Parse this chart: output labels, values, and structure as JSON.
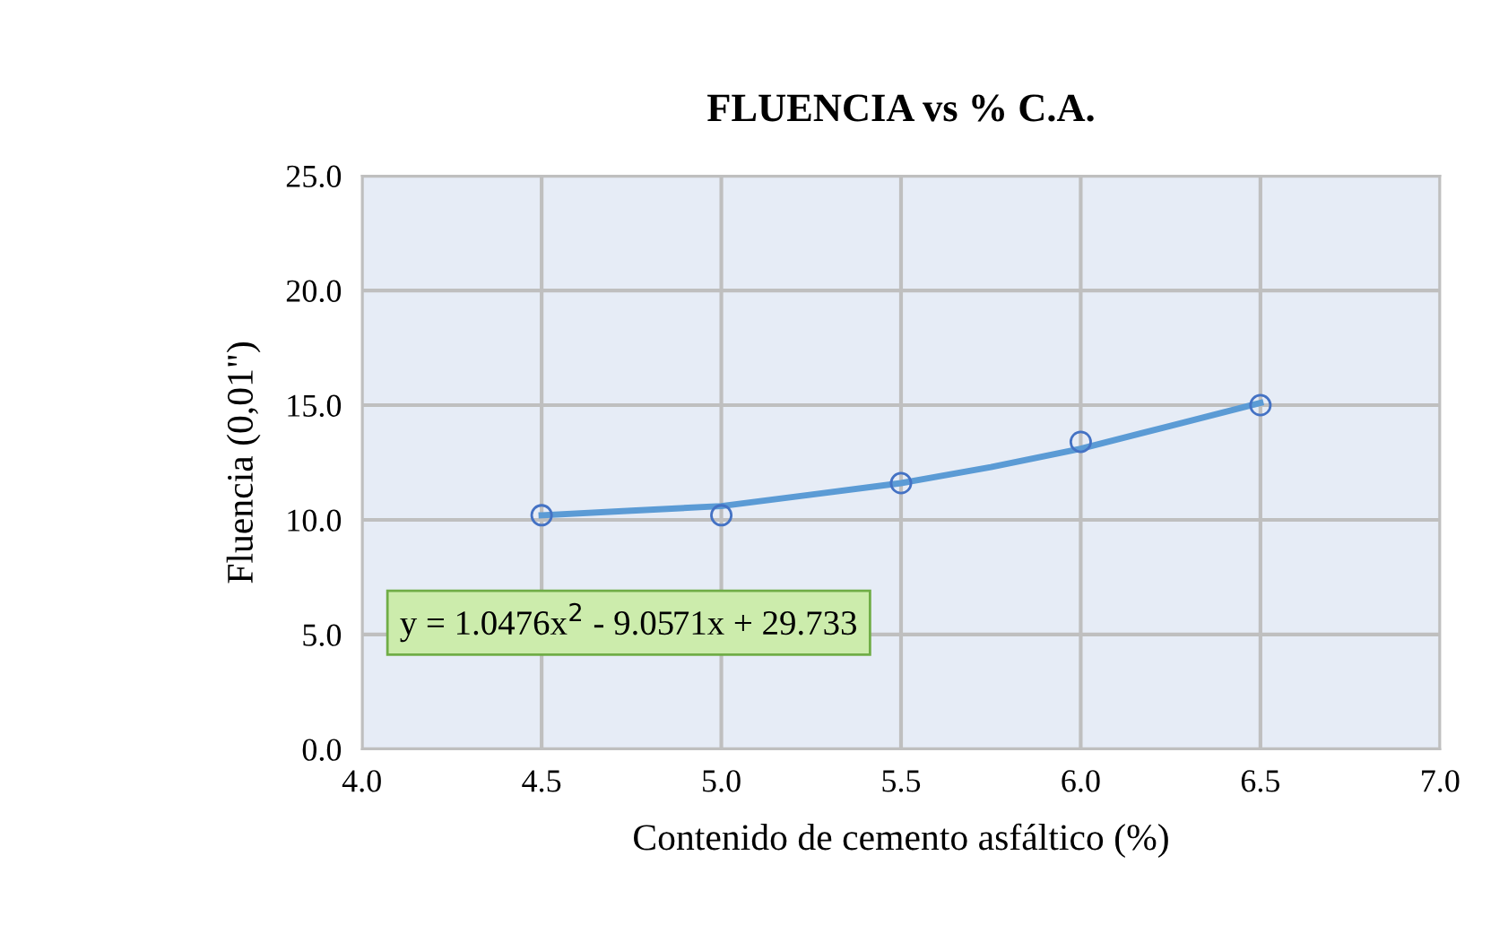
{
  "chart_data": {
    "type": "scatter",
    "title": "FLUENCIA vs % C.A.",
    "xlabel": "Contenido de cemento asfáltico (%)",
    "ylabel": "Fluencia (0,01\")",
    "xlim": [
      4.0,
      7.0
    ],
    "xticks": [
      {
        "value": 4.0,
        "label": "4.0"
      },
      {
        "value": 4.5,
        "label": "4.5"
      },
      {
        "value": 5.0,
        "label": "5.0"
      },
      {
        "value": 5.5,
        "label": "5.5"
      },
      {
        "value": 6.0,
        "label": "6.0"
      },
      {
        "value": 6.5,
        "label": "6.5"
      },
      {
        "value": 7.0,
        "label": "7.0"
      }
    ],
    "ylim": [
      0,
      25
    ],
    "yticks": [
      {
        "value": 0,
        "label": "0.0"
      },
      {
        "value": 5,
        "label": "5.0"
      },
      {
        "value": 10,
        "label": "10.0"
      },
      {
        "value": 15,
        "label": "15.0"
      },
      {
        "value": 20,
        "label": "20.0"
      },
      {
        "value": 25,
        "label": "25.0"
      }
    ],
    "grid": true,
    "marker": "circle",
    "series": [
      {
        "color": "#4472c4",
        "x": [
          4.5,
          5.0,
          5.5,
          6.0,
          6.5
        ],
        "values": [
          10.2,
          10.2,
          11.6,
          13.4,
          15.0
        ]
      },
      {
        "type": "line",
        "color": "#5b9bd5",
        "line_style": "solid",
        "marker": "none",
        "x": [
          4.5,
          4.75,
          5.0,
          5.25,
          5.5,
          5.75,
          6.0,
          6.25,
          6.5
        ],
        "values": [
          10.2,
          10.4,
          10.6,
          11.1,
          11.6,
          12.3,
          13.1,
          14.1,
          15.1
        ]
      }
    ],
    "annotations": [
      "y = 1.0476x$^{2}$ - 9.0571x + 29.733"
    ]
  }
}
